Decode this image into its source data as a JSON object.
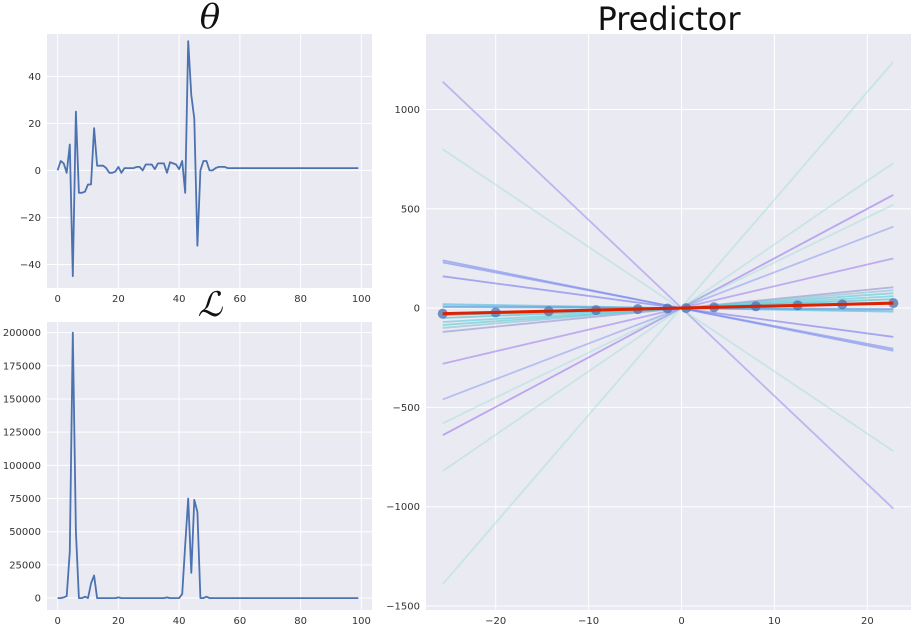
{
  "chart_data": [
    {
      "type": "line",
      "title": "θ",
      "xlabel": "",
      "ylabel": "",
      "xlim": [
        -3.5,
        103.5
      ],
      "ylim": [
        -50,
        58
      ],
      "xticks": [
        0,
        20,
        40,
        60,
        80,
        100
      ],
      "yticks": [
        -40,
        -20,
        0,
        20,
        40
      ],
      "grid": true,
      "series": [
        {
          "color": "#4C72B0",
          "x": [
            0,
            1,
            2,
            3,
            4,
            5,
            6,
            7,
            8,
            9,
            10,
            11,
            12,
            13,
            14,
            15,
            16,
            17,
            18,
            19,
            20,
            21,
            22,
            23,
            24,
            25,
            26,
            27,
            28,
            29,
            30,
            31,
            32,
            33,
            34,
            35,
            36,
            37,
            38,
            39,
            40,
            41,
            42,
            43,
            44,
            45,
            46,
            47,
            48,
            49,
            50,
            51,
            52,
            53,
            54,
            55,
            56,
            57,
            58,
            59,
            60,
            70,
            80,
            90,
            99
          ],
          "values": [
            0,
            4,
            3,
            -1,
            11,
            -45,
            25,
            -9.5,
            -9.5,
            -9,
            -6,
            -6,
            18,
            2,
            2,
            2,
            1,
            -1,
            -1,
            -0.5,
            1.5,
            -1,
            1,
            1,
            1,
            1,
            1.5,
            1.5,
            0,
            2.5,
            2.5,
            2.5,
            0.5,
            3,
            3,
            3,
            -1,
            3.5,
            3,
            2.5,
            0.5,
            4,
            -9.5,
            55,
            32,
            22,
            -32,
            0,
            4,
            4,
            0,
            0,
            1,
            1.5,
            1.5,
            1.5,
            1,
            1,
            1,
            1,
            1,
            1,
            1,
            1,
            1
          ]
        }
      ]
    },
    {
      "type": "line",
      "title": "ℒ",
      "xlabel": "",
      "ylabel": "",
      "xlim": [
        -3.5,
        103.5
      ],
      "ylim": [
        -9000,
        208000
      ],
      "xticks": [
        0,
        20,
        40,
        60,
        80,
        100
      ],
      "yticks": [
        0,
        25000,
        50000,
        75000,
        100000,
        125000,
        150000,
        175000,
        200000
      ],
      "grid": true,
      "series": [
        {
          "color": "#4C72B0",
          "x": [
            0,
            1,
            2,
            3,
            4,
            5,
            6,
            7,
            8,
            9,
            10,
            11,
            12,
            13,
            14,
            15,
            16,
            17,
            18,
            19,
            20,
            21,
            22,
            23,
            24,
            25,
            26,
            27,
            28,
            29,
            30,
            31,
            32,
            33,
            34,
            35,
            36,
            37,
            38,
            39,
            40,
            41,
            42,
            43,
            44,
            45,
            46,
            47,
            48,
            49,
            50,
            51,
            52,
            53,
            54,
            55,
            60,
            70,
            80,
            90,
            99
          ],
          "values": [
            0,
            0,
            500,
            1500,
            35000,
            200000,
            50000,
            0,
            0,
            1000,
            0,
            11000,
            17000,
            0,
            0,
            0,
            0,
            0,
            0,
            0,
            500,
            0,
            0,
            0,
            0,
            0,
            0,
            0,
            0,
            0,
            0,
            0,
            0,
            0,
            0,
            0,
            500,
            0,
            0,
            0,
            0,
            3000,
            40000,
            75000,
            19000,
            74000,
            65000,
            0,
            0,
            1000,
            0,
            0,
            0,
            0,
            0,
            0,
            0,
            0,
            0,
            0,
            0
          ]
        }
      ]
    },
    {
      "type": "line",
      "title": "Predictor",
      "xlabel": "",
      "ylabel": "",
      "xlim": [
        -27.5,
        24.7
      ],
      "ylim": [
        -1520,
        1380
      ],
      "xticks": [
        -20,
        -10,
        0,
        10,
        20
      ],
      "yticks": [
        -1500,
        -1000,
        -500,
        0,
        500,
        1000
      ],
      "grid": true,
      "x_span": [
        -25.7,
        22.8
      ],
      "predictor_lines": [
        {
          "values": [
            1140,
            -1010
          ],
          "color": "#9988ee",
          "opacity": 0.55
        },
        {
          "values": [
            800,
            -720
          ],
          "color": "#88ddcc",
          "opacity": 0.35
        },
        {
          "values": [
            -1390,
            1240
          ],
          "color": "#88ddcc",
          "opacity": 0.35
        },
        {
          "values": [
            -820,
            730
          ],
          "color": "#88ddcc",
          "opacity": 0.35
        },
        {
          "values": [
            -640,
            570
          ],
          "color": "#9977ee",
          "opacity": 0.6
        },
        {
          "values": [
            -580,
            520
          ],
          "color": "#88ddcc",
          "opacity": 0.35
        },
        {
          "values": [
            -460,
            410
          ],
          "color": "#8899ee",
          "opacity": 0.55
        },
        {
          "values": [
            -280,
            250
          ],
          "color": "#9977ee",
          "opacity": 0.55
        },
        {
          "values": [
            240,
            -215
          ],
          "color": "#7788ee",
          "opacity": 0.6
        },
        {
          "values": [
            230,
            -205
          ],
          "color": "#7788ee",
          "opacity": 0.6
        },
        {
          "values": [
            160,
            -145
          ],
          "color": "#7777ee",
          "opacity": 0.6
        },
        {
          "values": [
            -120,
            105
          ],
          "color": "#8888cc",
          "opacity": 0.55
        },
        {
          "values": [
            -100,
            90
          ],
          "color": "#77bbdd",
          "opacity": 0.55
        },
        {
          "values": [
            -85,
            75
          ],
          "color": "#55cccc",
          "opacity": 0.6
        },
        {
          "values": [
            -70,
            60
          ],
          "color": "#55ccdd",
          "opacity": 0.6
        },
        {
          "values": [
            -50,
            45
          ],
          "color": "#44bbcc",
          "opacity": 0.6
        },
        {
          "values": [
            -35,
            30
          ],
          "color": "#44aacc",
          "opacity": 0.6
        },
        {
          "values": [
            20,
            -18
          ],
          "color": "#44bbdd",
          "opacity": 0.6
        },
        {
          "values": [
            10,
            -9
          ],
          "color": "#55aadd",
          "opacity": 0.6
        },
        {
          "values": [
            5,
            -4
          ],
          "color": "#6699dd",
          "opacity": 0.6
        }
      ],
      "scatter_x": [
        -25.7,
        -20,
        -14.3,
        -9.2,
        -4.7,
        -1.5,
        0.5,
        3.5,
        8,
        12.5,
        17.3,
        22.8
      ],
      "scatter_y": [
        -28,
        -22,
        -16,
        -10,
        -5,
        -2,
        0,
        4,
        9,
        14,
        19,
        25
      ],
      "fit_line": {
        "values": [
          -28,
          25
        ],
        "color": "#dd2200"
      }
    }
  ],
  "colors": {
    "plot_bg": "#EAEAF2",
    "grid": "#ffffff",
    "line": "#4C72B0",
    "scatter": "#4C72B0",
    "fit": "#dd2200"
  }
}
